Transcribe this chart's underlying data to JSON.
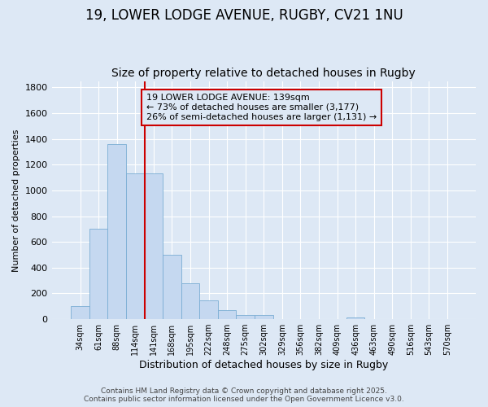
{
  "title1": "19, LOWER LODGE AVENUE, RUGBY, CV21 1NU",
  "title2": "Size of property relative to detached houses in Rugby",
  "xlabel": "Distribution of detached houses by size in Rugby",
  "ylabel": "Number of detached properties",
  "bar_labels": [
    "34sqm",
    "61sqm",
    "88sqm",
    "114sqm",
    "141sqm",
    "168sqm",
    "195sqm",
    "222sqm",
    "248sqm",
    "275sqm",
    "302sqm",
    "329sqm",
    "356sqm",
    "382sqm",
    "409sqm",
    "436sqm",
    "463sqm",
    "490sqm",
    "516sqm",
    "543sqm",
    "570sqm"
  ],
  "bar_values": [
    100,
    700,
    1360,
    1130,
    1130,
    500,
    280,
    145,
    70,
    35,
    30,
    0,
    0,
    0,
    0,
    15,
    0,
    0,
    0,
    0,
    0
  ],
  "bar_color": "#c5d8f0",
  "bar_edge_color": "#7aadd4",
  "red_line_index": 4,
  "ylim": [
    0,
    1850
  ],
  "yticks": [
    0,
    200,
    400,
    600,
    800,
    1000,
    1200,
    1400,
    1600,
    1800
  ],
  "background_color": "#dde8f5",
  "grid_color": "#ffffff",
  "annotation_text": "19 LOWER LODGE AVENUE: 139sqm\n← 73% of detached houses are smaller (3,177)\n26% of semi-detached houses are larger (1,131) →",
  "annotation_box_edge_color": "#cc0000",
  "footer_text": "Contains HM Land Registry data © Crown copyright and database right 2025.\nContains public sector information licensed under the Open Government Licence v3.0.",
  "title1_fontsize": 12,
  "title2_fontsize": 10,
  "annotation_fontsize": 8,
  "footer_fontsize": 6.5,
  "ylabel_fontsize": 8,
  "xlabel_fontsize": 9
}
